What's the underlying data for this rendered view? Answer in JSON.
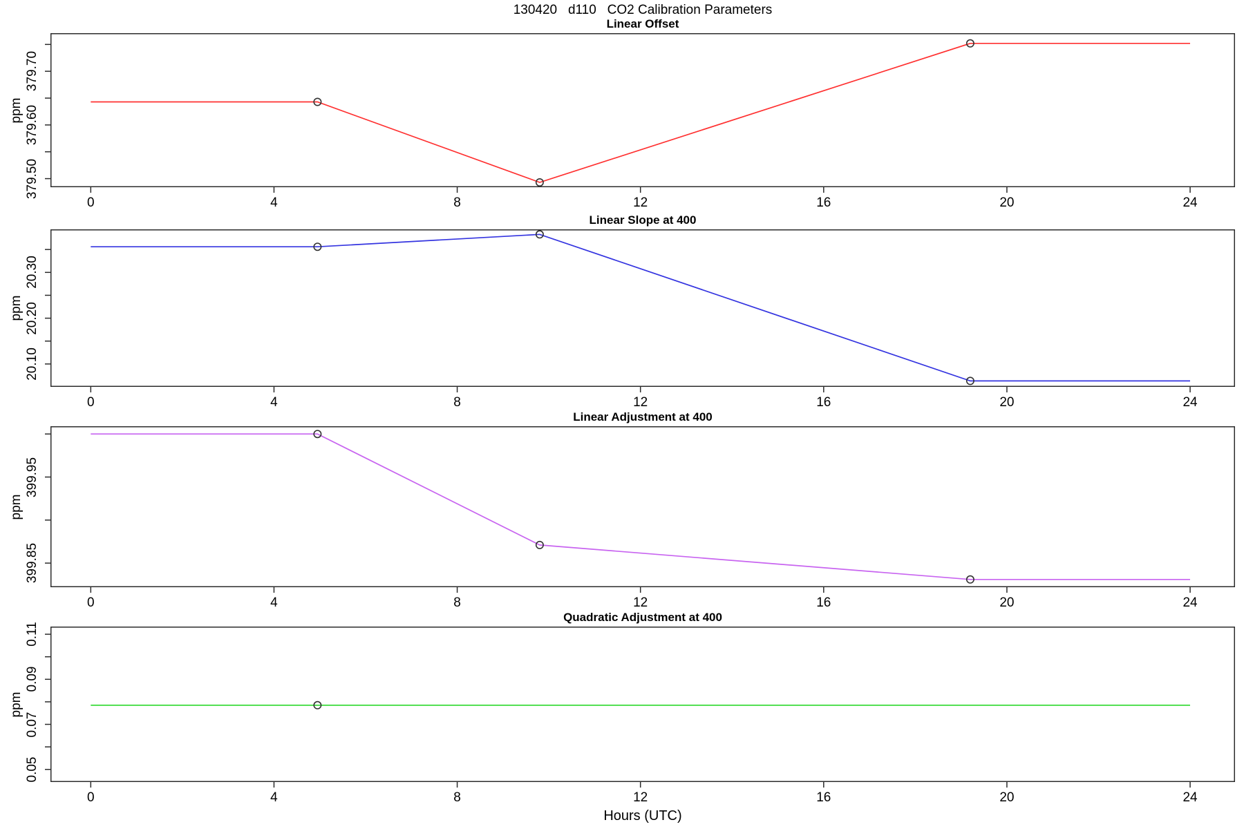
{
  "title": "130420   d110   CO2 Calibration Parameters",
  "xlabel": "Hours (UTC)",
  "ylabel": "ppm",
  "axis_color": "#2b2b2b",
  "marker_color": "#333333",
  "chart_data": [
    {
      "type": "line",
      "title": "Linear Offset",
      "color": "#ff3030",
      "ylabel": "ppm",
      "xlim": [
        -0.88,
        24.98
      ],
      "ylim": [
        379.484,
        379.771
      ],
      "xticks": [
        0,
        4,
        8,
        12,
        16,
        20,
        24
      ],
      "yticks": [
        379.5,
        379.55,
        379.6,
        379.65,
        379.7,
        379.75
      ],
      "ytick_labels": [
        "379.50",
        "",
        "379.60",
        "",
        "379.70",
        ""
      ],
      "line": {
        "x": [
          0,
          4.95,
          9.8,
          19.2,
          24
        ],
        "y": [
          379.643,
          379.643,
          379.493,
          379.752,
          379.752
        ]
      },
      "markers": {
        "x": [
          4.95,
          9.8,
          19.2
        ],
        "y": [
          379.643,
          379.493,
          379.752
        ]
      }
    },
    {
      "type": "line",
      "title": "Linear Slope at 400",
      "color": "#3434e0",
      "ylabel": "ppm",
      "xlim": [
        -0.88,
        24.98
      ],
      "ylim": [
        20.05,
        20.394
      ],
      "xticks": [
        0,
        4,
        8,
        12,
        16,
        20,
        24
      ],
      "yticks": [
        20.1,
        20.15,
        20.2,
        20.25,
        20.3,
        20.35
      ],
      "ytick_labels": [
        "20.10",
        "",
        "20.20",
        "",
        "20.30",
        ""
      ],
      "line": {
        "x": [
          0,
          4.95,
          9.8,
          19.2,
          24
        ],
        "y": [
          20.356,
          20.356,
          20.383,
          20.063,
          20.063
        ]
      },
      "markers": {
        "x": [
          4.95,
          9.8,
          19.2
        ],
        "y": [
          20.356,
          20.383,
          20.063
        ]
      }
    },
    {
      "type": "line",
      "title": "Linear Adjustment at 400",
      "color": "#c864f0",
      "ylabel": "ppm",
      "xlim": [
        -0.88,
        24.98
      ],
      "ylim": [
        399.822,
        400.009
      ],
      "xticks": [
        0,
        4,
        8,
        12,
        16,
        20,
        24
      ],
      "yticks": [
        399.85,
        399.9,
        399.95,
        400.0
      ],
      "ytick_labels": [
        "399.85",
        "",
        "399.95",
        ""
      ],
      "line": {
        "x": [
          0,
          4.95,
          9.8,
          19.2,
          24
        ],
        "y": [
          400.0,
          400.0,
          399.871,
          399.831,
          399.831
        ]
      },
      "markers": {
        "x": [
          4.95,
          9.8,
          19.2
        ],
        "y": [
          400.0,
          399.871,
          399.831
        ]
      }
    },
    {
      "type": "line",
      "title": "Quadratic Adjustment at 400",
      "color": "#2ad82a",
      "ylabel": "ppm",
      "xlim": [
        -0.88,
        24.98
      ],
      "ylim": [
        0.0444,
        0.1134
      ],
      "xticks": [
        0,
        4,
        8,
        12,
        16,
        20,
        24
      ],
      "yticks": [
        0.05,
        0.06,
        0.07,
        0.08,
        0.09,
        0.1,
        0.11
      ],
      "ytick_labels": [
        "0.05",
        "",
        "0.07",
        "",
        "0.09",
        "",
        "0.11"
      ],
      "line": {
        "x": [
          0,
          24
        ],
        "y": [
          0.0785,
          0.0785
        ]
      },
      "markers": {
        "x": [
          4.95
        ],
        "y": [
          0.0785
        ]
      }
    }
  ]
}
